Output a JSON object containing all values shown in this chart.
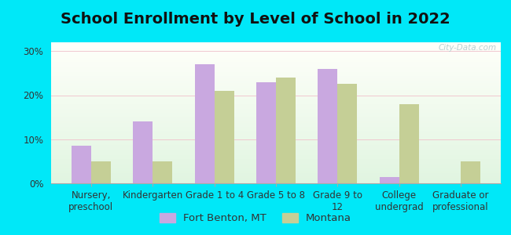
{
  "title": "School Enrollment by Level of School in 2022",
  "categories": [
    "Nursery,\npreschool",
    "Kindergarten",
    "Grade 1 to 4",
    "Grade 5 to 8",
    "Grade 9 to\n12",
    "College\nundergrad",
    "Graduate or\nprofessional"
  ],
  "fort_benton": [
    8.5,
    14.0,
    27.0,
    23.0,
    26.0,
    1.5,
    0.0
  ],
  "montana": [
    5.0,
    5.0,
    21.0,
    24.0,
    22.5,
    18.0,
    5.0
  ],
  "fort_benton_color": "#c9a8e0",
  "montana_color": "#c5cf96",
  "bar_width": 0.32,
  "ylim": [
    0,
    32
  ],
  "yticks": [
    0,
    10,
    20,
    30
  ],
  "ytick_labels": [
    "0%",
    "10%",
    "20%",
    "30%"
  ],
  "legend_labels": [
    "Fort Benton, MT",
    "Montana"
  ],
  "bg_outer": "#00e8f8",
  "watermark": "City-Data.com",
  "title_fontsize": 14,
  "tick_fontsize": 8.5,
  "legend_fontsize": 9.5
}
